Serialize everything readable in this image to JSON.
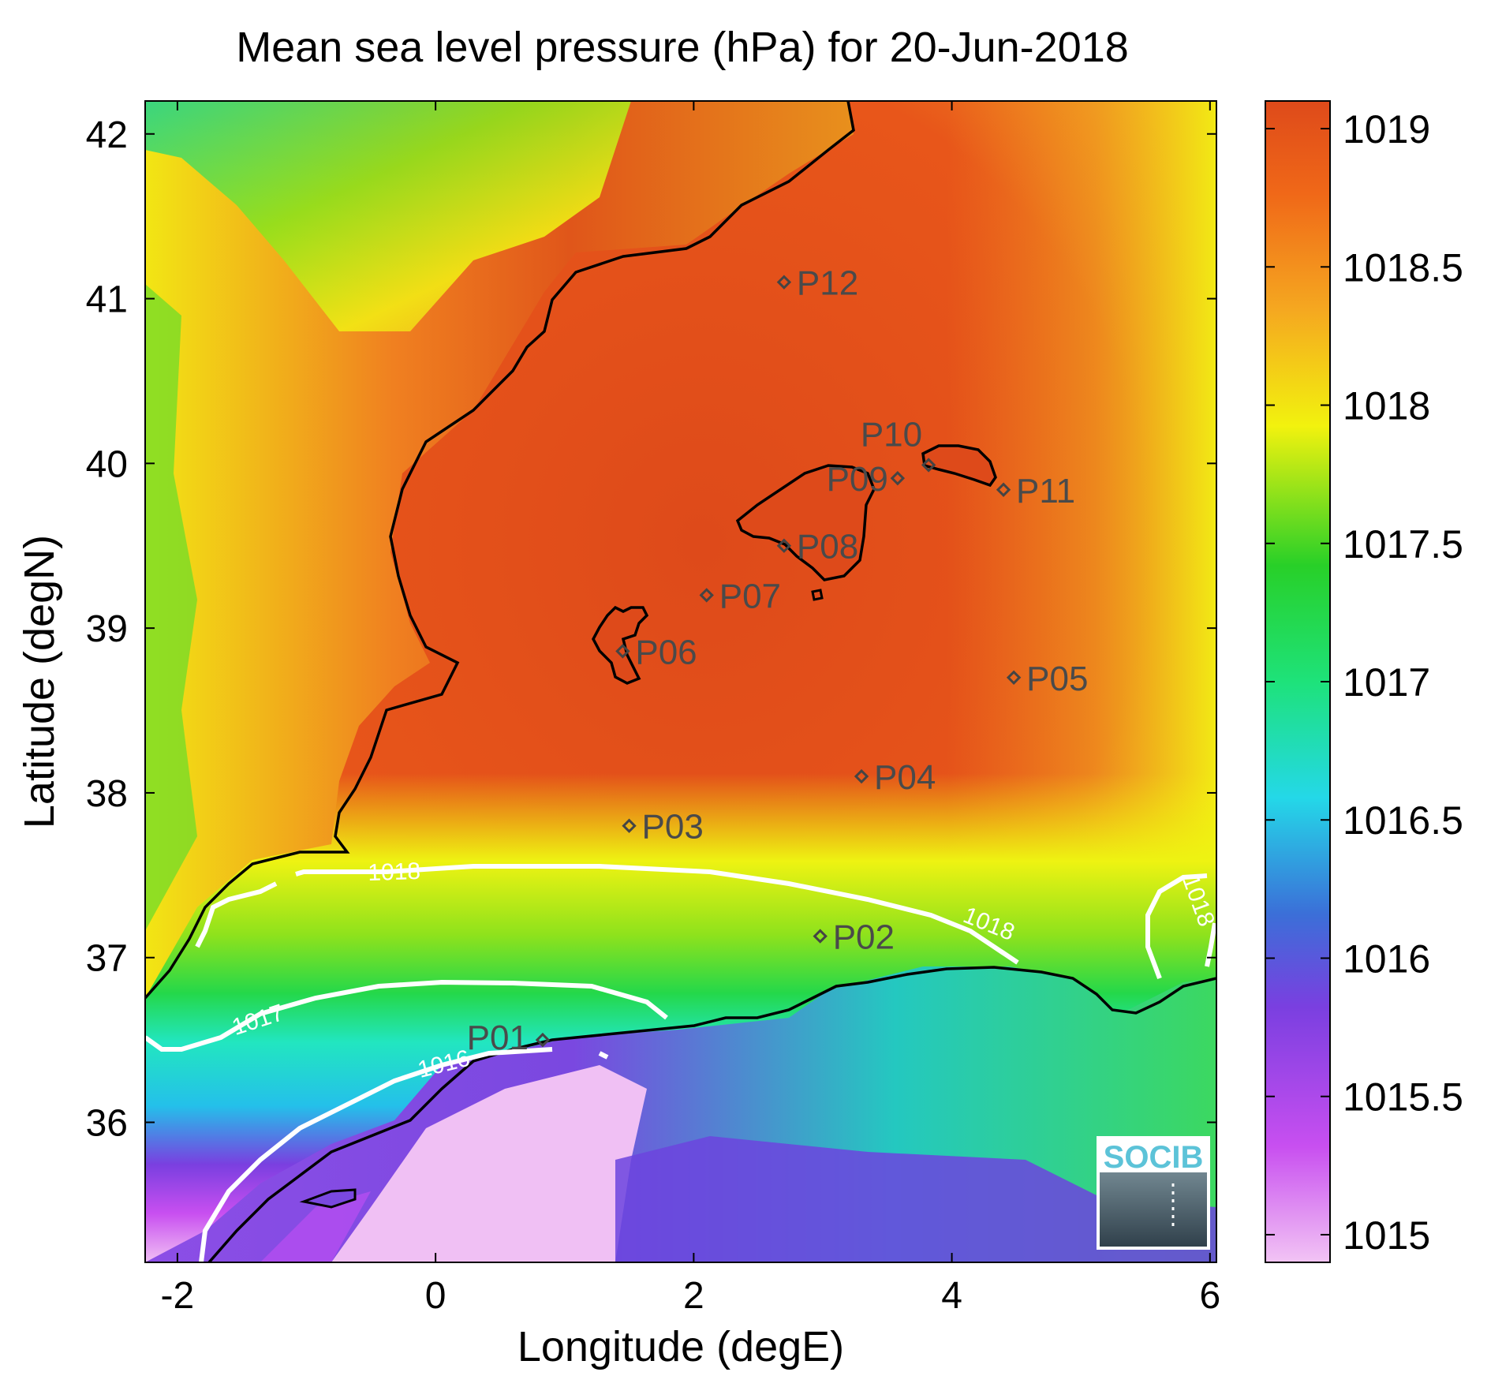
{
  "chart_data": {
    "type": "heatmap",
    "title": "Mean sea level pressure (hPa) for 20-Jun-2018",
    "xlabel": "Longitude (degE)",
    "ylabel": "Latitude (degN)",
    "xlim": [
      -2.25,
      6.05
    ],
    "ylim": [
      35.15,
      42.2
    ],
    "xticks": [
      -2,
      0,
      2,
      4,
      6
    ],
    "xtick_labels": [
      "-2",
      "0",
      "2",
      "4",
      "6"
    ],
    "yticks": [
      36,
      37,
      38,
      39,
      40,
      41,
      42
    ],
    "ytick_labels": [
      "36",
      "37",
      "38",
      "39",
      "40",
      "41",
      "42"
    ],
    "colorbar": {
      "range": [
        1014.9,
        1019.1
      ],
      "ticks": [
        1015,
        1015.5,
        1016,
        1016.5,
        1017,
        1017.5,
        1018,
        1018.5,
        1019
      ],
      "tick_labels": [
        "1015",
        "1015.5",
        "1016",
        "1016.5",
        "1017",
        "1017.5",
        "1018",
        "1018.5",
        "1019"
      ],
      "colors": [
        "#f2c4f4",
        "#c84ff0",
        "#7a3fe0",
        "#3b6fd8",
        "#24d8e8",
        "#1ee27a",
        "#28d028",
        "#f2f20e",
        "#f5a820",
        "#f06818",
        "#de4a1a"
      ]
    },
    "stations": [
      {
        "name": "P01",
        "lon": 0.83,
        "lat": 36.5
      },
      {
        "name": "P02",
        "lon": 2.98,
        "lat": 37.13
      },
      {
        "name": "P03",
        "lon": 1.5,
        "lat": 37.8
      },
      {
        "name": "P04",
        "lon": 3.3,
        "lat": 38.1
      },
      {
        "name": "P05",
        "lon": 4.48,
        "lat": 38.7
      },
      {
        "name": "P06",
        "lon": 1.45,
        "lat": 38.86
      },
      {
        "name": "P07",
        "lon": 2.1,
        "lat": 39.2
      },
      {
        "name": "P08",
        "lon": 2.7,
        "lat": 39.5
      },
      {
        "name": "P09",
        "lon": 3.58,
        "lat": 39.91
      },
      {
        "name": "P10",
        "lon": 3.82,
        "lat": 39.99
      },
      {
        "name": "P11",
        "lon": 4.4,
        "lat": 39.84
      },
      {
        "name": "P12",
        "lon": 2.7,
        "lat": 41.1
      }
    ],
    "contours": [
      {
        "level": 1016,
        "label": "1016"
      },
      {
        "level": 1017,
        "label": "1017"
      },
      {
        "level": 1018,
        "label": "1018"
      }
    ],
    "legend": "colorbar right"
  },
  "logo": {
    "text": "SOCIB"
  }
}
